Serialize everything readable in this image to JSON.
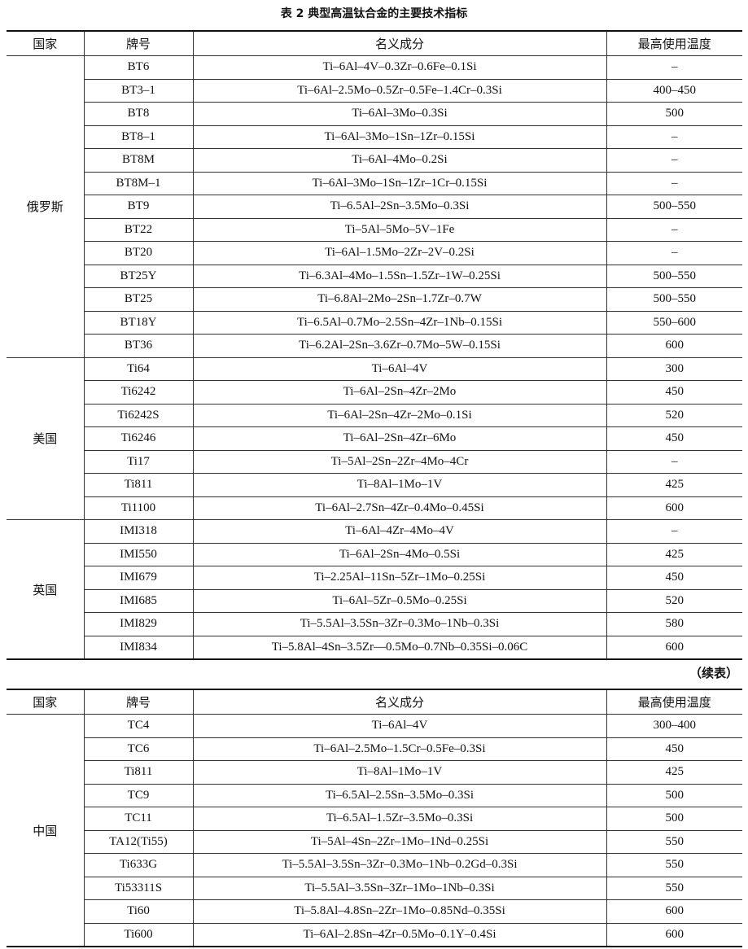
{
  "title": "表 2 典型高温钛合金的主要技术指标",
  "table1": {
    "header": [
      "国家",
      "牌号",
      "名义成分",
      "最高使用温度"
    ],
    "groups": [
      {
        "country": "俄罗斯",
        "rows": [
          [
            "BT6",
            "Ti–6Al–4V–0.3Zr–0.6Fe–0.1Si",
            "–"
          ],
          [
            "BT3–1",
            "Ti–6Al–2.5Mo–0.5Zr–0.5Fe–1.4Cr–0.3Si",
            "400–450"
          ],
          [
            "BT8",
            "Ti–6Al–3Mo–0.3Si",
            "500"
          ],
          [
            "BT8–1",
            "Ti–6Al–3Mo–1Sn–1Zr–0.15Si",
            "–"
          ],
          [
            "BT8M",
            "Ti–6Al–4Mo–0.2Si",
            "–"
          ],
          [
            "BT8M–1",
            "Ti–6Al–3Mo–1Sn–1Zr–1Cr–0.15Si",
            "–"
          ],
          [
            "BT9",
            "Ti–6.5Al–2Sn–3.5Mo–0.3Si",
            "500–550"
          ],
          [
            "BT22",
            "Ti–5Al–5Mo–5V–1Fe",
            "–"
          ],
          [
            "BT20",
            "Ti–6Al–1.5Mo–2Zr–2V–0.2Si",
            "–"
          ],
          [
            "BT25Y",
            "Ti–6.3Al–4Mo–1.5Sn–1.5Zr–1W–0.25Si",
            "500–550"
          ],
          [
            "BT25",
            "Ti–6.8Al–2Mo–2Sn–1.7Zr–0.7W",
            "500–550"
          ],
          [
            "BT18Y",
            "Ti–6.5Al–0.7Mo–2.5Sn–4Zr–1Nb–0.15Si",
            "550–600"
          ],
          [
            "BT36",
            "Ti–6.2Al–2Sn–3.6Zr–0.7Mo–5W–0.15Si",
            "600"
          ]
        ]
      },
      {
        "country": "美国",
        "rows": [
          [
            "Ti64",
            "Ti–6Al–4V",
            "300"
          ],
          [
            "Ti6242",
            "Ti–6Al–2Sn–4Zr–2Mo",
            "450"
          ],
          [
            "Ti6242S",
            "Ti–6Al–2Sn–4Zr–2Mo–0.1Si",
            "520"
          ],
          [
            "Ti6246",
            "Ti–6Al–2Sn–4Zr–6Mo",
            "450"
          ],
          [
            "Ti17",
            "Ti–5Al–2Sn–2Zr–4Mo–4Cr",
            "–"
          ],
          [
            "Ti811",
            "Ti–8Al–1Mo–1V",
            "425"
          ],
          [
            "Ti1100",
            "Ti–6Al–2.7Sn–4Zr–0.4Mo–0.45Si",
            "600"
          ]
        ]
      },
      {
        "country": "英国",
        "rows": [
          [
            "IMI318",
            "Ti–6Al–4Zr–4Mo–4V",
            "–"
          ],
          [
            "IMI550",
            "Ti–6Al–2Sn–4Mo–0.5Si",
            "425"
          ],
          [
            "IMI679",
            "Ti–2.25Al–11Sn–5Zr–1Mo–0.25Si",
            "450"
          ],
          [
            "IMI685",
            "Ti–6Al–5Zr–0.5Mo–0.25Si",
            "520"
          ],
          [
            "IMI829",
            "Ti–5.5Al–3.5Sn–3Zr–0.3Mo–1Nb–0.3Si",
            "580"
          ],
          [
            "IMI834",
            "Ti–5.8Al–4Sn–3.5Zr––0.5Mo–0.7Nb–0.35Si–0.06C",
            "600"
          ]
        ]
      }
    ]
  },
  "continued": "（续表）",
  "table2": {
    "header": [
      "国家",
      "牌号",
      "名义成分",
      "最高使用温度"
    ],
    "groups": [
      {
        "country": "中国",
        "rows": [
          [
            "TC4",
            "Ti–6Al–4V",
            "300–400"
          ],
          [
            "TC6",
            "Ti–6Al–2.5Mo–1.5Cr–0.5Fe–0.3Si",
            "450"
          ],
          [
            "Ti811",
            "Ti–8Al–1Mo–1V",
            "425"
          ],
          [
            "TC9",
            "Ti–6.5Al–2.5Sn–3.5Mo–0.3Si",
            "500"
          ],
          [
            "TC11",
            "Ti–6.5Al–1.5Zr–3.5Mo–0.3Si",
            "500"
          ],
          [
            "TA12(Ti55)",
            "Ti–5Al–4Sn–2Zr–1Mo–1Nd–0.25Si",
            "550"
          ],
          [
            "Ti633G",
            "Ti–5.5Al–3.5Sn–3Zr–0.3Mo–1Nb–0.2Gd–0.3Si",
            "550"
          ],
          [
            "Ti53311S",
            "Ti–5.5Al–3.5Sn–3Zr–1Mo–1Nb–0.3Si",
            "550"
          ],
          [
            "Ti60",
            "Ti–5.8Al–4.8Sn–2Zr–1Mo–0.85Nd–0.35Si",
            "600"
          ],
          [
            "Ti600",
            "Ti–6Al–2.8Sn–4Zr–0.5Mo–0.1Y–0.4Si",
            "600"
          ]
        ]
      }
    ]
  }
}
